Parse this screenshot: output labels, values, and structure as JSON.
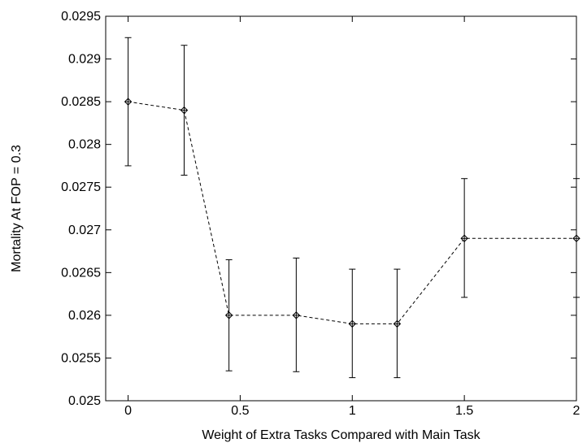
{
  "chart_data": {
    "type": "line",
    "title": "",
    "xlabel": "Weight of Extra Tasks Compared with Main Task",
    "ylabel": "Mortality At FOP = 0.3",
    "xlim": [
      -0.1,
      2.0
    ],
    "ylim": [
      0.025,
      0.0295
    ],
    "xticks": [
      {
        "value": 0,
        "label": "0"
      },
      {
        "value": 0.5,
        "label": "0.5"
      },
      {
        "value": 1,
        "label": "1"
      },
      {
        "value": 1.5,
        "label": "1.5"
      },
      {
        "value": 2,
        "label": "2"
      }
    ],
    "yticks": [
      {
        "value": 0.025,
        "label": "0.025"
      },
      {
        "value": 0.0255,
        "label": "0.0255"
      },
      {
        "value": 0.026,
        "label": "0.026"
      },
      {
        "value": 0.0265,
        "label": "0.0265"
      },
      {
        "value": 0.027,
        "label": "0.027"
      },
      {
        "value": 0.0275,
        "label": "0.0275"
      },
      {
        "value": 0.028,
        "label": "0.028"
      },
      {
        "value": 0.0285,
        "label": "0.0285"
      },
      {
        "value": 0.029,
        "label": "0.029"
      },
      {
        "value": 0.0295,
        "label": "0.0295"
      }
    ],
    "grid": false,
    "legend": "none",
    "series": [
      {
        "points": [
          {
            "x": 0.0,
            "y": 0.0285,
            "ylow": 0.02775,
            "yhigh": 0.02925
          },
          {
            "x": 0.25,
            "y": 0.0284,
            "ylow": 0.02764,
            "yhigh": 0.02916
          },
          {
            "x": 0.45,
            "y": 0.026,
            "ylow": 0.02535,
            "yhigh": 0.02665
          },
          {
            "x": 0.75,
            "y": 0.026,
            "ylow": 0.02534,
            "yhigh": 0.02667
          },
          {
            "x": 1.0,
            "y": 0.0259,
            "ylow": 0.02527,
            "yhigh": 0.02654
          },
          {
            "x": 1.2,
            "y": 0.0259,
            "ylow": 0.02527,
            "yhigh": 0.02654
          },
          {
            "x": 1.5,
            "y": 0.0269,
            "ylow": 0.02621,
            "yhigh": 0.0276
          },
          {
            "x": 2.0,
            "y": 0.0269,
            "ylow": 0.02621,
            "yhigh": 0.0276
          }
        ],
        "line_style": "dashed",
        "marker": "diamond-plus",
        "color": "#000000"
      }
    ]
  }
}
